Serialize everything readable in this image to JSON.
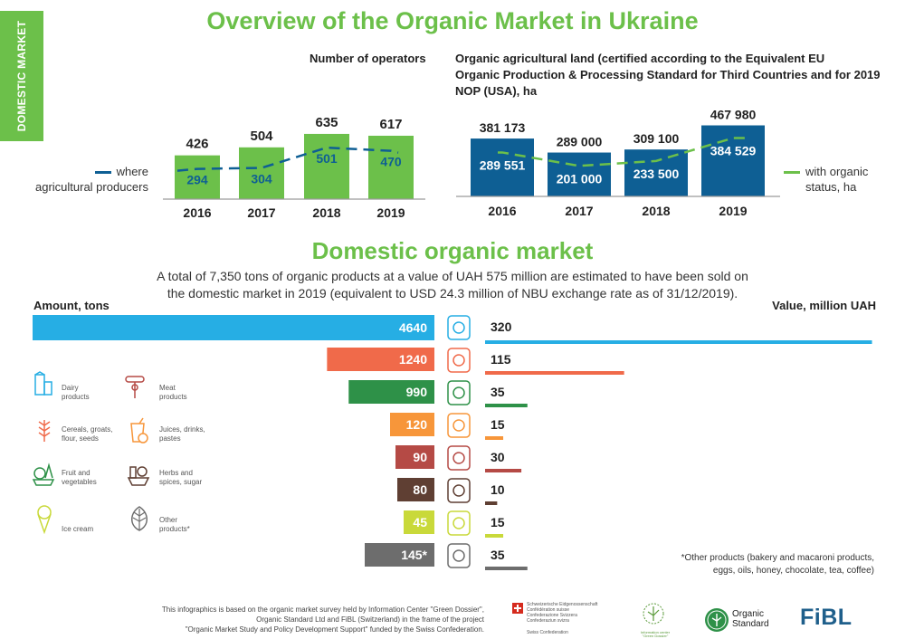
{
  "side_tab": "DOMESTIC MARKET",
  "header": {
    "title": "Overview of the Organic Market in Ukraine"
  },
  "operators": {
    "title": "Number of operators",
    "legend": "where agricultural producers",
    "legend_line1": "where",
    "legend_line2": "agricultural producers"
  },
  "land": {
    "title_line1": "Organic agricultural land (certified according to the Equivalent EU",
    "title_line2": "Organic Production & Processing Standard for Third Countries and for 2019",
    "title_line3": "NOP (USA), ha",
    "legend_line1": "with organic",
    "legend_line2": "status, ha"
  },
  "domestic": {
    "title": "Domestic organic market",
    "subtitle_line1": "A total of 7,350 tons of organic products at a value of UAH 575 million are estimated to have been sold on",
    "subtitle_line2": "the domestic market in 2019 (equivalent to USD 24.3 million of NBU exchange rate as of 31/12/2019).",
    "left_label": "Amount, tons",
    "right_label": "Value, million UAH"
  },
  "legend": {
    "dairy": [
      "Dairy",
      "products"
    ],
    "meat": [
      "Meat",
      "products"
    ],
    "cereals": [
      "Cereals, groats,",
      "flour, seeds"
    ],
    "juices": [
      "Juices, drinks,",
      "pastes"
    ],
    "fruit": [
      "Fruit and",
      "vegetables"
    ],
    "herbs": [
      "Herbs and",
      "spices, sugar"
    ],
    "icecream": [
      "Ice cream"
    ],
    "other": [
      "Other",
      "products*"
    ]
  },
  "note": {
    "line1": "*Other products (bakery and macaroni products,",
    "line2": "eggs, oils, honey, chocolate, tea, coffee)"
  },
  "footer": {
    "line1": "This infographics is based on the organic market survey held by Information Center \"Green Dossier\",",
    "line2": "Organic Standard Ltd and FiBL (Switzerland) in the frame of the project",
    "line3": "\"Organic Market Study and Policy Development Support\" funded by the Swiss Confederation."
  },
  "logos": {
    "swiss": [
      "Schweizerische Eidgenossenschaft",
      "Confédération suisse",
      "Confederazione Svizzera",
      "Confederaziun svizra"
    ],
    "swiss_bottom": "Swiss Confederation",
    "green_dossier": [
      "Information center",
      "\"Green Dossier\""
    ],
    "organic_standard": [
      "Organic",
      "Standard"
    ],
    "fibl": "FiBL"
  },
  "colors": {
    "green": "#6cc04a",
    "blue": "#0e5f94",
    "sky": "#26aee4",
    "orange_red": "#f06a4a",
    "dark_green": "#2e9148",
    "orange": "#f7963a",
    "dark_red": "#b54a45",
    "brown": "#5f3f33",
    "lime": "#c9d93a",
    "gray": "#6d6d6d"
  },
  "chart_data": [
    {
      "type": "bar",
      "title": "Number of operators",
      "categories": [
        "2016",
        "2017",
        "2018",
        "2019"
      ],
      "series": [
        {
          "name": "",
          "values": [
            426,
            504,
            635,
            617
          ]
        },
        {
          "name": "where agricultural producers",
          "values": [
            294,
            304,
            501,
            470
          ]
        }
      ]
    },
    {
      "type": "bar",
      "title": "Organic agricultural land (certified according to the Equivalent EU Organic Production & Processing Standard for Third Countries and for 2019 NOP (USA), ha",
      "categories": [
        "2016",
        "2017",
        "2018",
        "2019"
      ],
      "series": [
        {
          "name": "",
          "values": [
            "381 173",
            "289 000",
            "309 100",
            "467 980"
          ],
          "numeric": [
            381173,
            289000,
            309100,
            467980
          ]
        },
        {
          "name": "with organic status, ha",
          "values": [
            "289 551",
            "201 000",
            "233 500",
            "384 529"
          ],
          "numeric": [
            289551,
            201000,
            233500,
            384529
          ]
        }
      ]
    },
    {
      "type": "bar",
      "title": "Domestic organic market",
      "categories": [
        "Dairy products",
        "Cereals, groats, flour, seeds",
        "Fruit and vegetables",
        "Juices, drinks, pastes",
        "Meat products",
        "Herbs and spices, sugar",
        "Ice cream",
        "Other products*"
      ],
      "icons": [
        "dairy-icon",
        "cereals-icon",
        "fruit-icon",
        "juice-icon",
        "meat-icon",
        "herbs-icon",
        "icecream-icon",
        "leaf-icon"
      ],
      "series": [
        {
          "name": "Amount, tons",
          "values": [
            4640,
            1240,
            990,
            120,
            90,
            80,
            45,
            145
          ],
          "labels": [
            "4640",
            "1240",
            "990",
            "120",
            "90",
            "80",
            "45",
            "145*"
          ]
        },
        {
          "name": "Value, million UAH",
          "values": [
            320,
            115,
            35,
            15,
            30,
            10,
            15,
            35
          ]
        }
      ],
      "series_colors": [
        "#26aee4",
        "#f06a4a",
        "#2e9148",
        "#f7963a",
        "#b54a45",
        "#5f3f33",
        "#c9d93a",
        "#6d6d6d"
      ]
    }
  ]
}
